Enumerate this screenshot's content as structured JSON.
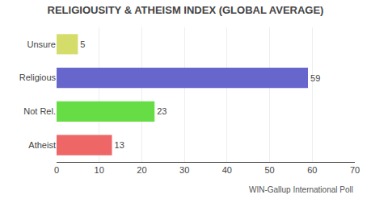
{
  "chart_data": {
    "type": "bar",
    "orientation": "horizontal",
    "title": "RELIGIOUSITY & ATHEISM INDEX (GLOBAL AVERAGE)",
    "categories": [
      "Unsure",
      "Religious",
      "Not Rel.",
      "Atheist"
    ],
    "values": [
      5,
      59,
      23,
      13
    ],
    "colors": [
      "#d4dc6a",
      "#6666cc",
      "#66dd44",
      "#ee6666"
    ],
    "xlim": [
      0,
      70
    ],
    "xticks": [
      0,
      10,
      20,
      30,
      40,
      50,
      60,
      70
    ],
    "grid": true,
    "data_labels": true,
    "annotations": [
      "WIN-Gallup International Poll"
    ]
  }
}
